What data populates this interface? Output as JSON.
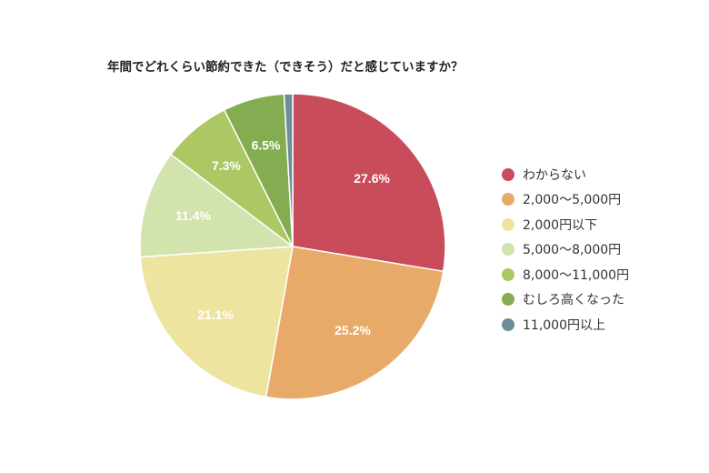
{
  "chart_data": {
    "type": "pie",
    "title": "年間でどれくらい節約できた（できそう）だと感じていますか？",
    "legend_position": "right",
    "slices": [
      {
        "label": "わからない",
        "value": 27.6,
        "value_label": "27.6%",
        "color": "#c94c5b"
      },
      {
        "label": "2,000〜5,000円",
        "value": 25.2,
        "value_label": "25.2%",
        "color": "#e8aa69"
      },
      {
        "label": "2,000円以下",
        "value": 21.1,
        "value_label": "21.1%",
        "color": "#ede4a0"
      },
      {
        "label": "5,000〜8,000円",
        "value": 11.4,
        "value_label": "11.4%",
        "color": "#d3e3ad"
      },
      {
        "label": "8,000〜11,000円",
        "value": 7.3,
        "value_label": "7.3%",
        "color": "#adc764"
      },
      {
        "label": "むしろ高くなった",
        "value": 6.5,
        "value_label": "6.5%",
        "color": "#84ad52"
      },
      {
        "label": "11,000円以上",
        "value": 0.9,
        "value_label": "",
        "color": "#6d8e98"
      }
    ]
  }
}
